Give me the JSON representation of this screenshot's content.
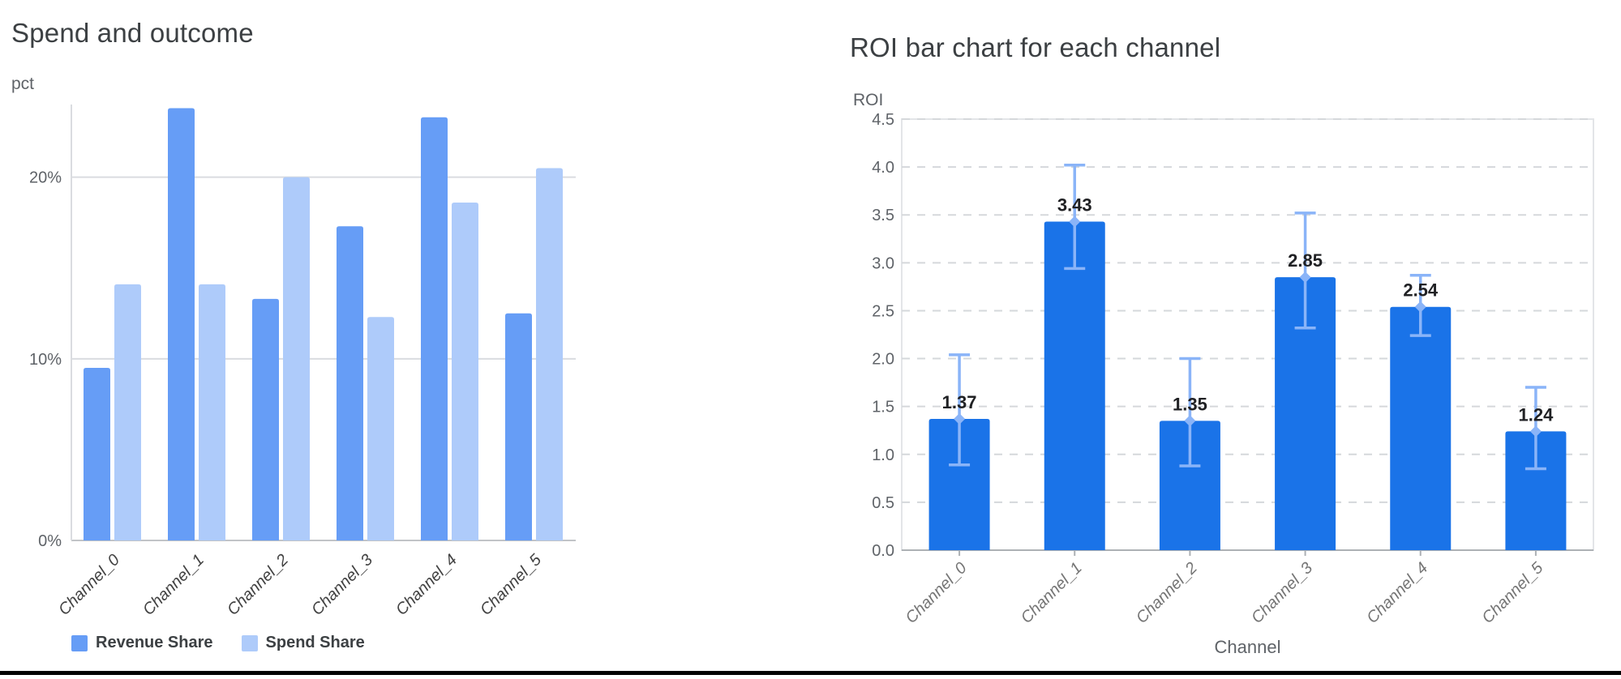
{
  "page": {
    "background_color": "#ffffff",
    "bottom_rule_color": "#000000"
  },
  "chart_data": [
    {
      "id": "spend-and-outcome",
      "type": "bar",
      "title": "Spend and outcome",
      "ylabel": "pct",
      "xlabel": "",
      "categories": [
        "Channel_0",
        "Channel_1",
        "Channel_2",
        "Channel_3",
        "Channel_4",
        "Channel_5"
      ],
      "series": [
        {
          "name": "Revenue Share",
          "color": "#669DF6",
          "values": [
            9.5,
            23.8,
            13.3,
            17.3,
            23.3,
            12.5
          ]
        },
        {
          "name": "Spend Share",
          "color": "#AECBFA",
          "values": [
            14.1,
            14.1,
            20.0,
            12.3,
            18.6,
            20.5
          ]
        }
      ],
      "ylim": [
        0,
        24
      ],
      "yticks": [
        {
          "v": 0,
          "label": "0%"
        },
        {
          "v": 10,
          "label": "10%"
        },
        {
          "v": 20,
          "label": "20%"
        }
      ],
      "grid": "solid",
      "legend_position": "bottom",
      "gridline_color": "#dadce0",
      "baseline_color": "#c1c4c7"
    },
    {
      "id": "roi-by-channel",
      "type": "bar",
      "title": "ROI bar chart for each channel",
      "ylabel": "ROI",
      "xlabel": "Channel",
      "categories": [
        "Channel_0",
        "Channel_1",
        "Channel_2",
        "Channel_3",
        "Channel_4",
        "Channel_5"
      ],
      "values": [
        1.37,
        3.43,
        1.35,
        2.85,
        2.54,
        1.24
      ],
      "value_labels": [
        "1.37",
        "3.43",
        "1.35",
        "2.85",
        "2.54",
        "1.24"
      ],
      "error_bars": [
        {
          "low": 0.89,
          "high": 2.04
        },
        {
          "low": 2.94,
          "high": 4.02
        },
        {
          "low": 0.88,
          "high": 2.0
        },
        {
          "low": 2.32,
          "high": 3.52
        },
        {
          "low": 2.24,
          "high": 2.87
        },
        {
          "low": 0.85,
          "high": 1.7
        }
      ],
      "bar_color": "#1A73E8",
      "error_color": "#8AB4F8",
      "ylim": [
        0,
        4.5
      ],
      "ytick_step": 0.5,
      "grid": "dashed",
      "gridline_color": "#d5d8db",
      "box_color": "#e3e5e8",
      "baseline_color": "#adb1b5",
      "legend_position": "none"
    }
  ]
}
